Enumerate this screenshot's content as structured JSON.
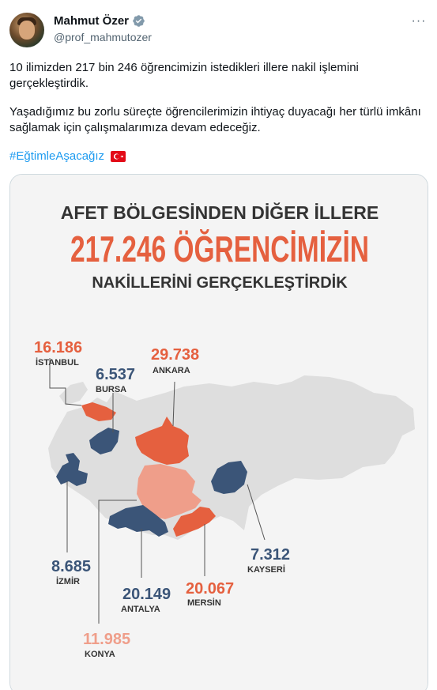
{
  "tweet": {
    "author_name": "Mahmut Özer",
    "author_handle": "@prof_mahmutozer",
    "more_label": "···",
    "paragraph_1": "10 ilimizden 217 bin 246 öğrencimizin istedikleri illere nakil işlemini gerçekleştirdik.",
    "paragraph_2": "Yaşadığımız bu zorlu süreçte öğrencilerimizin ihtiyaç duyacağı her türlü imkânı sağlamak için çalışmalarımıza devam edeceğiz.",
    "hashtag": "#EğtimleAşacağız"
  },
  "infographic": {
    "heading_top": "AFET BÖLGESİNDEN DİĞER İLLERE",
    "heading_main": "217.246 ÖĞRENCİMİZİN",
    "heading_bottom": "NAKİLLERİNİ GERÇEKLEŞTİRDİK",
    "colors": {
      "red": "#e5603f",
      "navy": "#3b5578",
      "pink": "#ef9e8a",
      "map_grey": "#dedede",
      "text_dark": "#333333"
    },
    "cities": [
      {
        "id": "istanbul",
        "value": "16.186",
        "name": "İSTANBUL",
        "color": "red"
      },
      {
        "id": "bursa",
        "value": "6.537",
        "name": "BURSA",
        "color": "navy"
      },
      {
        "id": "ankara",
        "value": "29.738",
        "name": "ANKARA",
        "color": "red"
      },
      {
        "id": "izmir",
        "value": "8.685",
        "name": "İZMİR",
        "color": "navy"
      },
      {
        "id": "antalya",
        "value": "20.149",
        "name": "ANTALYA",
        "color": "navy"
      },
      {
        "id": "mersin",
        "value": "20.067",
        "name": "MERSİN",
        "color": "red"
      },
      {
        "id": "kayseri",
        "value": "7.312",
        "name": "KAYSERİ",
        "color": "navy"
      },
      {
        "id": "konya",
        "value": "11.985",
        "name": "KONYA",
        "color": "pink"
      }
    ]
  }
}
